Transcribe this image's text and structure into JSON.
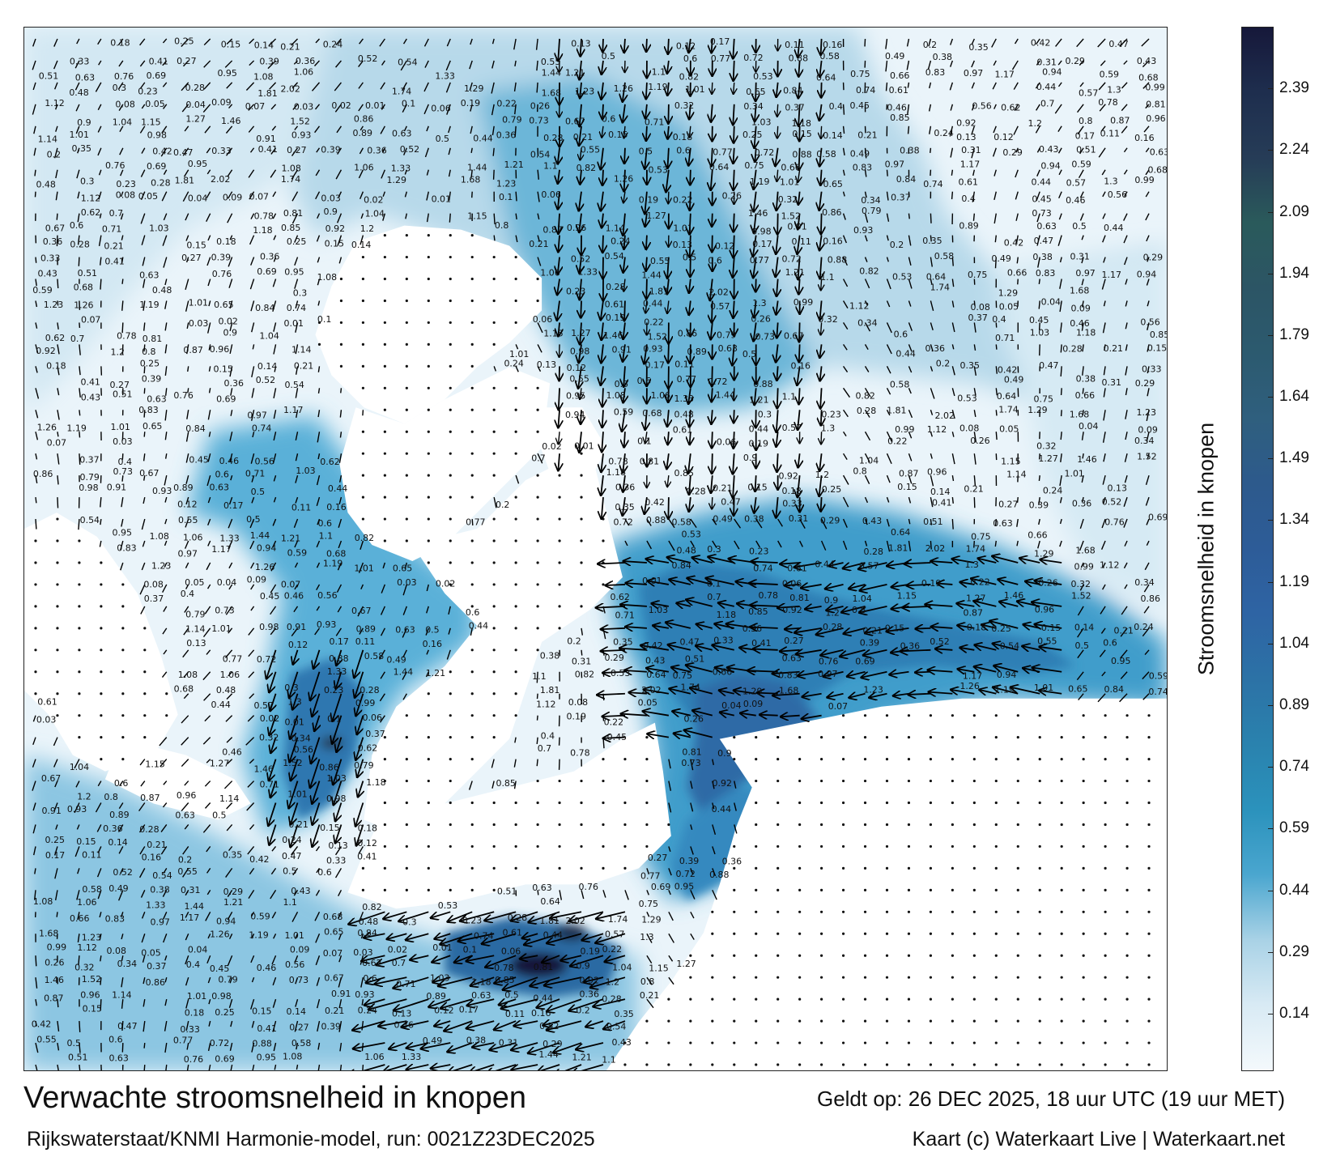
{
  "map": {
    "title": "Verwachte stroomsnelheid in knopen",
    "subtitle": "Rijkswaterstaat/KNMI Harmonie-model, run: 0021Z23DEC2025",
    "valid_time": "Geldt op: 26 DEC 2025, 18 uur UTC (19 uur MET)",
    "credit": "Kaart (c) Waterkaart Live | Waterkaart.net",
    "land_color": "#ffffff",
    "arrow_color": "#000000"
  },
  "legend": {
    "title": "Stroomsnelheid in knopen",
    "ticks": [
      "0.14",
      "0.29",
      "0.44",
      "0.59",
      "0.74",
      "0.89",
      "1.04",
      "1.19",
      "1.34",
      "1.49",
      "1.64",
      "1.79",
      "1.94",
      "2.09",
      "2.24",
      "2.39"
    ],
    "colors": [
      "#f4f9fc",
      "#d8eaf4",
      "#a9d2e6",
      "#4aa6cf",
      "#2b92bc",
      "#2a82ae",
      "#2c72a6",
      "#2e64a4",
      "#2d5c98",
      "#2d5a8c",
      "#2f5f7e",
      "#2c5a6f",
      "#2c5565",
      "#2a5a5b",
      "#263c57",
      "#1e2e4e",
      "#16183a"
    ]
  },
  "current_samples": [
    {
      "label": "0.18"
    },
    {
      "label": "0.25"
    },
    {
      "label": "0.15"
    },
    {
      "label": "0.14"
    },
    {
      "label": "0.21"
    },
    {
      "label": "0.24"
    },
    {
      "label": "0.13"
    },
    {
      "label": "0.12"
    },
    {
      "label": "0.17"
    },
    {
      "label": "0.11"
    },
    {
      "label": "0.16"
    },
    {
      "label": "0.2"
    },
    {
      "label": "0.35"
    },
    {
      "label": "0.42"
    },
    {
      "label": "0.47"
    },
    {
      "label": "0.33"
    },
    {
      "label": "0.41"
    },
    {
      "label": "0.27"
    },
    {
      "label": "0.39"
    },
    {
      "label": "0.36"
    },
    {
      "label": "0.52"
    },
    {
      "label": "0.54"
    },
    {
      "label": "0.55"
    },
    {
      "label": "0.5"
    },
    {
      "label": "0.6"
    },
    {
      "label": "0.77"
    },
    {
      "label": "0.72"
    },
    {
      "label": "0.88"
    },
    {
      "label": "0.58"
    },
    {
      "label": "0.49"
    },
    {
      "label": "0.38"
    },
    {
      "label": "0.31"
    },
    {
      "label": "0.29"
    },
    {
      "label": "0.43"
    },
    {
      "label": "0.51"
    },
    {
      "label": "0.63"
    },
    {
      "label": "0.76"
    },
    {
      "label": "0.69"
    },
    {
      "label": "0.95"
    },
    {
      "label": "1.08"
    },
    {
      "label": "1.06"
    },
    {
      "label": "1.33"
    },
    {
      "label": "1.44"
    },
    {
      "label": "1.21"
    },
    {
      "label": "1.1"
    },
    {
      "label": "0.82"
    },
    {
      "label": "0.53"
    },
    {
      "label": "0.64"
    },
    {
      "label": "0.75"
    },
    {
      "label": "0.66"
    },
    {
      "label": "0.83"
    },
    {
      "label": "0.97"
    },
    {
      "label": "1.17"
    },
    {
      "label": "0.94"
    },
    {
      "label": "0.59"
    },
    {
      "label": "0.68"
    },
    {
      "label": "0.48"
    },
    {
      "label": "0.3"
    },
    {
      "label": "0.23"
    },
    {
      "label": "0.28"
    },
    {
      "label": "1.81"
    },
    {
      "label": "2.02"
    },
    {
      "label": "1.74"
    },
    {
      "label": "1.29"
    },
    {
      "label": "1.68"
    },
    {
      "label": "1.23"
    },
    {
      "label": "1.26"
    },
    {
      "label": "1.19"
    },
    {
      "label": "1.01"
    },
    {
      "label": "0.65"
    },
    {
      "label": "0.84"
    },
    {
      "label": "0.74"
    },
    {
      "label": "0.61"
    },
    {
      "label": "0.44"
    },
    {
      "label": "0.57"
    },
    {
      "label": "1.3"
    },
    {
      "label": "0.99"
    },
    {
      "label": "1.12"
    },
    {
      "label": "0.08"
    },
    {
      "label": "0.05"
    },
    {
      "label": "0.04"
    },
    {
      "label": "0.09"
    },
    {
      "label": "0.07"
    },
    {
      "label": "0.03"
    },
    {
      "label": "0.02"
    },
    {
      "label": "0.01"
    },
    {
      "label": "0.1"
    },
    {
      "label": "0.06"
    },
    {
      "label": "0.19"
    },
    {
      "label": "0.22"
    },
    {
      "label": "0.26"
    },
    {
      "label": "0.32"
    },
    {
      "label": "0.34"
    },
    {
      "label": "0.37"
    },
    {
      "label": "0.4"
    },
    {
      "label": "0.45"
    },
    {
      "label": "0.46"
    },
    {
      "label": "0.56"
    },
    {
      "label": "0.62"
    },
    {
      "label": "0.7"
    },
    {
      "label": "0.78"
    },
    {
      "label": "0.81"
    },
    {
      "label": "0.9"
    },
    {
      "label": "1.04"
    },
    {
      "label": "1.15"
    },
    {
      "label": "1.27"
    },
    {
      "label": "1.46"
    },
    {
      "label": "1.52"
    },
    {
      "label": "0.86"
    },
    {
      "label": "0.79"
    },
    {
      "label": "0.73"
    },
    {
      "label": "0.67"
    },
    {
      "label": "0.6"
    },
    {
      "label": "0.71"
    },
    {
      "label": "1.03"
    },
    {
      "label": "1.18"
    },
    {
      "label": "0.85"
    },
    {
      "label": "0.92"
    },
    {
      "label": "1.2"
    },
    {
      "label": "0.8"
    },
    {
      "label": "0.87"
    },
    {
      "label": "0.96"
    },
    {
      "label": "1.14"
    },
    {
      "label": "1.01"
    },
    {
      "label": "0.98"
    },
    {
      "label": "0.91"
    },
    {
      "label": "0.93"
    },
    {
      "label": "0.89"
    },
    {
      "label": "0.63"
    },
    {
      "label": "0.5"
    },
    {
      "label": "0.44"
    },
    {
      "label": "0.36"
    },
    {
      "label": "0.28"
    },
    {
      "label": "0.21"
    },
    {
      "label": "0.15"
    }
  ]
}
